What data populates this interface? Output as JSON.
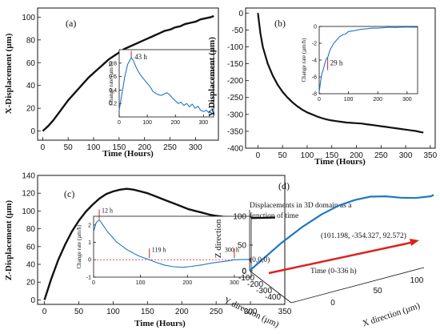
{
  "chart_data": [
    {
      "id": "a",
      "type": "line",
      "panel_label": "(a)",
      "xlabel": "Time (Hours)",
      "ylabel": "X-Displacement (µm)",
      "xlim": [
        -10,
        345
      ],
      "ylim": [
        -8,
        108
      ],
      "xticks": [
        0,
        50,
        100,
        150,
        200,
        250,
        300
      ],
      "yticks": [
        0,
        20,
        40,
        60,
        80,
        100
      ],
      "series": [
        {
          "color": "#111111",
          "x": [
            0,
            10,
            20,
            30,
            40,
            50,
            60,
            70,
            80,
            90,
            100,
            110,
            120,
            130,
            140,
            150,
            160,
            170,
            180,
            190,
            200,
            210,
            220,
            230,
            240,
            250,
            260,
            270,
            280,
            290,
            300,
            310,
            320,
            330,
            336
          ],
          "y": [
            0,
            4,
            9,
            15,
            21,
            27,
            32,
            37,
            42,
            47,
            51,
            55,
            59,
            63,
            66,
            69,
            72,
            74,
            76,
            78,
            80,
            82,
            84,
            86,
            88,
            89,
            91,
            92,
            94,
            95,
            96,
            98,
            99,
            100,
            101
          ]
        }
      ],
      "inset": {
        "ylabel": "Change rate (µm/h)",
        "xlim": [
          0,
          336
        ],
        "ylim": [
          0,
          1
        ],
        "xticks": [
          0,
          100,
          200,
          300
        ],
        "yticks": [
          0.2,
          0.4,
          0.6,
          0.8
        ],
        "annotation": "43 h",
        "marker_x": 43,
        "series": [
          {
            "color": "#1f77c4",
            "x": [
              0,
              10,
              20,
              30,
              40,
              43,
              50,
              60,
              70,
              80,
              90,
              100,
              110,
              120,
              130,
              140,
              150,
              160,
              170,
              180,
              190,
              200,
              210,
              220,
              230,
              240,
              250,
              260,
              270,
              280,
              290,
              300,
              310,
              320,
              330,
              336
            ],
            "y": [
              0.1,
              0.35,
              0.6,
              0.78,
              0.86,
              0.88,
              0.84,
              0.74,
              0.66,
              0.6,
              0.55,
              0.5,
              0.45,
              0.38,
              0.35,
              0.33,
              0.32,
              0.34,
              0.36,
              0.33,
              0.28,
              0.24,
              0.2,
              0.22,
              0.17,
              0.2,
              0.15,
              0.19,
              0.13,
              0.16,
              0.1,
              0.08,
              0.1,
              0.06,
              0.12,
              0.04
            ]
          }
        ]
      }
    },
    {
      "id": "b",
      "type": "line",
      "panel_label": "(b)",
      "xlabel": "Time (Hours)",
      "ylabel": "Y-Displacement (µm)",
      "xlim": [
        -25,
        360
      ],
      "ylim": [
        -400,
        15
      ],
      "xticks": [
        0,
        50,
        100,
        150,
        200,
        250,
        300,
        350
      ],
      "yticks": [
        0,
        -50,
        -100,
        -150,
        -200,
        -250,
        -300,
        -350,
        -400
      ],
      "series": [
        {
          "color": "#111111",
          "x": [
            0,
            5,
            10,
            20,
            30,
            40,
            50,
            60,
            70,
            80,
            90,
            100,
            110,
            120,
            130,
            140,
            150,
            160,
            170,
            180,
            190,
            200,
            210,
            220,
            230,
            240,
            250,
            260,
            270,
            280,
            290,
            300,
            310,
            320,
            330,
            336
          ],
          "y": [
            0,
            -60,
            -100,
            -150,
            -185,
            -212,
            -233,
            -250,
            -264,
            -276,
            -286,
            -294,
            -300,
            -306,
            -311,
            -315,
            -318,
            -320,
            -322,
            -324,
            -325,
            -326,
            -327,
            -329,
            -331,
            -333,
            -335,
            -337,
            -339,
            -341,
            -343,
            -345,
            -347,
            -349,
            -352,
            -354
          ]
        }
      ],
      "inset": {
        "ylabel": "Change rate (µm/h)",
        "xlim": [
          0,
          336
        ],
        "ylim": [
          -8,
          0
        ],
        "xticks": [
          0,
          100,
          200,
          300
        ],
        "yticks": [
          0,
          -2,
          -4,
          -6,
          -8
        ],
        "annotation": "29 h",
        "marker_x": 29,
        "series": [
          {
            "color": "#1f77c4",
            "x": [
              0,
              5,
              10,
              15,
              20,
              25,
              29,
              35,
              40,
              50,
              60,
              70,
              80,
              90,
              100,
              120,
              140,
              160,
              180,
              200,
              220,
              240,
              260,
              280,
              300,
              320,
              336
            ],
            "y": [
              -7.8,
              -6.5,
              -5.5,
              -5.0,
              -4.3,
              -3.8,
              -3.7,
              -3.0,
              -2.6,
              -2.0,
              -1.6,
              -1.2,
              -1.0,
              -0.9,
              -0.6,
              -0.5,
              -0.35,
              -0.3,
              -0.2,
              -0.2,
              -0.15,
              -0.1,
              -0.12,
              -0.1,
              -0.08,
              -0.1,
              -0.1
            ]
          }
        ]
      }
    },
    {
      "id": "c",
      "type": "line",
      "panel_label": "(c)",
      "xlabel": "Time (Hours)",
      "ylabel": "Z-Displacement (µm)",
      "xlim": [
        -10,
        350
      ],
      "ylim": [
        -5,
        140
      ],
      "xticks": [
        0,
        50,
        100,
        150,
        200,
        250,
        300,
        350
      ],
      "yticks": [
        0,
        20,
        40,
        60,
        80,
        100,
        120,
        140
      ],
      "series": [
        {
          "color": "#111111",
          "x": [
            0,
            10,
            20,
            30,
            40,
            50,
            60,
            70,
            80,
            90,
            100,
            110,
            120,
            130,
            140,
            150,
            160,
            170,
            180,
            190,
            200,
            210,
            220,
            230,
            240,
            250,
            260,
            270,
            280,
            290,
            300,
            310,
            320,
            330,
            336
          ],
          "y": [
            0,
            24,
            45,
            62,
            77,
            89,
            99,
            107,
            114,
            119,
            122,
            124,
            125,
            124,
            122,
            120,
            117,
            114,
            111,
            108,
            105,
            102,
            100,
            98,
            96,
            94.5,
            93.5,
            92.8,
            92.3,
            92,
            92,
            92.2,
            92.4,
            92.5,
            92.6
          ]
        }
      ],
      "inset": {
        "ylabel": "Change rate (µm/h)",
        "xlim": [
          0,
          336
        ],
        "ylim": [
          -1,
          2.5
        ],
        "xticks": [
          0,
          100,
          200,
          300
        ],
        "yticks": [
          -1,
          0,
          1,
          2
        ],
        "annotations": [
          {
            "text": "12 h",
            "x": 12
          },
          {
            "text": "119 h",
            "x": 119
          },
          {
            "text": "300 h",
            "x": 300
          }
        ],
        "series": [
          {
            "color": "#1f77c4",
            "x": [
              0,
              5,
              12,
              20,
              30,
              40,
              50,
              60,
              70,
              80,
              90,
              100,
              110,
              119,
              130,
              150,
              170,
              190,
              210,
              230,
              250,
              270,
              290,
              300,
              320,
              336
            ],
            "y": [
              1.6,
              2.1,
              2.3,
              2.0,
              1.6,
              1.3,
              1.0,
              0.8,
              0.6,
              0.45,
              0.3,
              0.18,
              0.08,
              0.0,
              -0.12,
              -0.3,
              -0.4,
              -0.44,
              -0.38,
              -0.3,
              -0.2,
              -0.12,
              -0.05,
              0.0,
              0.02,
              0.02
            ]
          }
        ]
      }
    },
    {
      "id": "d",
      "type": "line",
      "panel_label": "(d)",
      "zlabel": "Z direction",
      "ylabel": "Y direction (µm)",
      "xlabel": "X direction (µm)",
      "zticks": [
        "0",
        "50",
        "100"
      ],
      "yticks": [
        "0",
        "-100",
        "-200",
        "-300",
        "-400"
      ],
      "xticks": [
        "0",
        "50",
        "100"
      ],
      "annotation_title": "Displacements in 3D domain as a function of time",
      "start_label": "(0,0,0)",
      "end_label": "(101.198, -354.327, 92.572)",
      "arrow_label": "Time (0-336 h)",
      "arrow_color": "#e02020",
      "series": [
        {
          "color": "#1f77c4",
          "x": [
            0,
            10,
            20,
            30,
            40,
            50,
            60,
            70,
            80,
            90,
            100,
            101.198
          ],
          "y": [
            0,
            -150,
            -210,
            -250,
            -275,
            -294,
            -306,
            -318,
            -325,
            -333,
            -345,
            -354.327
          ],
          "z": [
            0,
            45,
            70,
            88,
            100,
            106,
            108,
            104,
            97,
            92,
            91,
            92.572
          ]
        }
      ]
    }
  ]
}
